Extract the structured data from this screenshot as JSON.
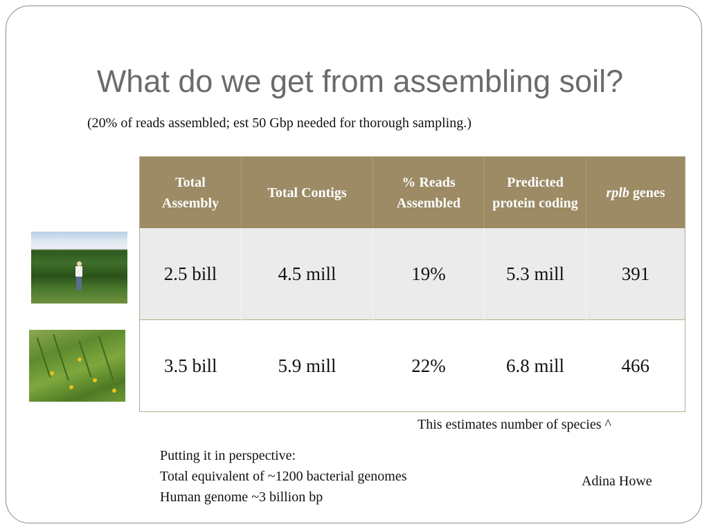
{
  "slide": {
    "title": "What do we get from assembling soil?",
    "subtitle": "(20% of reads assembled; est 50 Gbp needed for thorough sampling.)"
  },
  "table": {
    "headers": [
      {
        "line1": "Total",
        "line2": "Assembly"
      },
      {
        "line1": "Total Contigs",
        "line2": ""
      },
      {
        "line1": "% Reads",
        "line2": "Assembled"
      },
      {
        "line1": "Predicted protein coding",
        "line2": ""
      },
      {
        "italic": "rplb",
        "rest": " genes"
      }
    ],
    "rows": [
      [
        "2.5 bill",
        "4.5 mill",
        "19%",
        "5.3 mill",
        "391"
      ],
      [
        "3.5 bill",
        "5.9 mill",
        "22%",
        "6.8 mill",
        "466"
      ]
    ]
  },
  "images": [
    {
      "name": "cornfield-photo"
    },
    {
      "name": "prairie-photo"
    }
  ],
  "notes": {
    "species": "This estimates number of species ^",
    "perspective": [
      "Putting it in perspective:",
      "Total equivalent of ~1200 bacterial genomes",
      "Human genome ~3 billion bp"
    ],
    "author": "Adina Howe"
  },
  "colors": {
    "title": "#6b6b6b",
    "header_bg": "#9c8b64",
    "row_shade": "#ebebeb"
  }
}
